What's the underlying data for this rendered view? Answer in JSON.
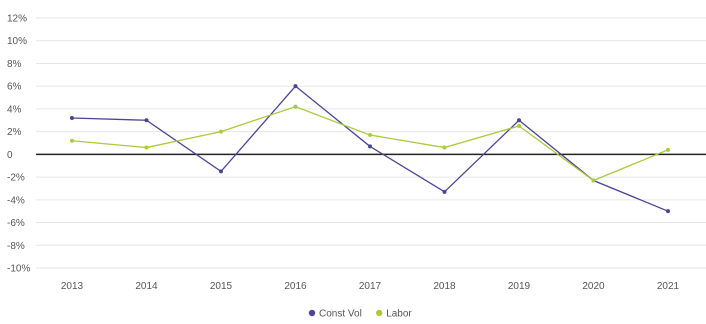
{
  "chart_data": {
    "type": "line",
    "x": [
      "2013",
      "2014",
      "2015",
      "2016",
      "2017",
      "2018",
      "2019",
      "2020",
      "2021"
    ],
    "series": [
      {
        "name": "Const Vol",
        "color": "#4b4595",
        "values": [
          3.2,
          3.0,
          -1.5,
          6.0,
          0.7,
          -3.3,
          3.0,
          -2.3,
          -5.0
        ]
      },
      {
        "name": "Labor",
        "color": "#a8cc3c",
        "values": [
          1.2,
          0.6,
          2.0,
          4.2,
          1.7,
          0.6,
          2.5,
          -2.3,
          0.4
        ]
      }
    ],
    "ylim": [
      -10,
      12
    ],
    "yticks": [
      12,
      10,
      8,
      6,
      4,
      2,
      0,
      -2,
      -4,
      -6,
      -8,
      -10
    ],
    "ytick_labels": [
      "12%",
      "10%",
      "8%",
      "6%",
      "4%",
      "2%",
      "0",
      "-2%",
      "-4%",
      "-6%",
      "-8%",
      "-10%"
    ],
    "grid": true,
    "legend_position": "bottom-center",
    "title": "",
    "xlabel": "",
    "ylabel": ""
  }
}
